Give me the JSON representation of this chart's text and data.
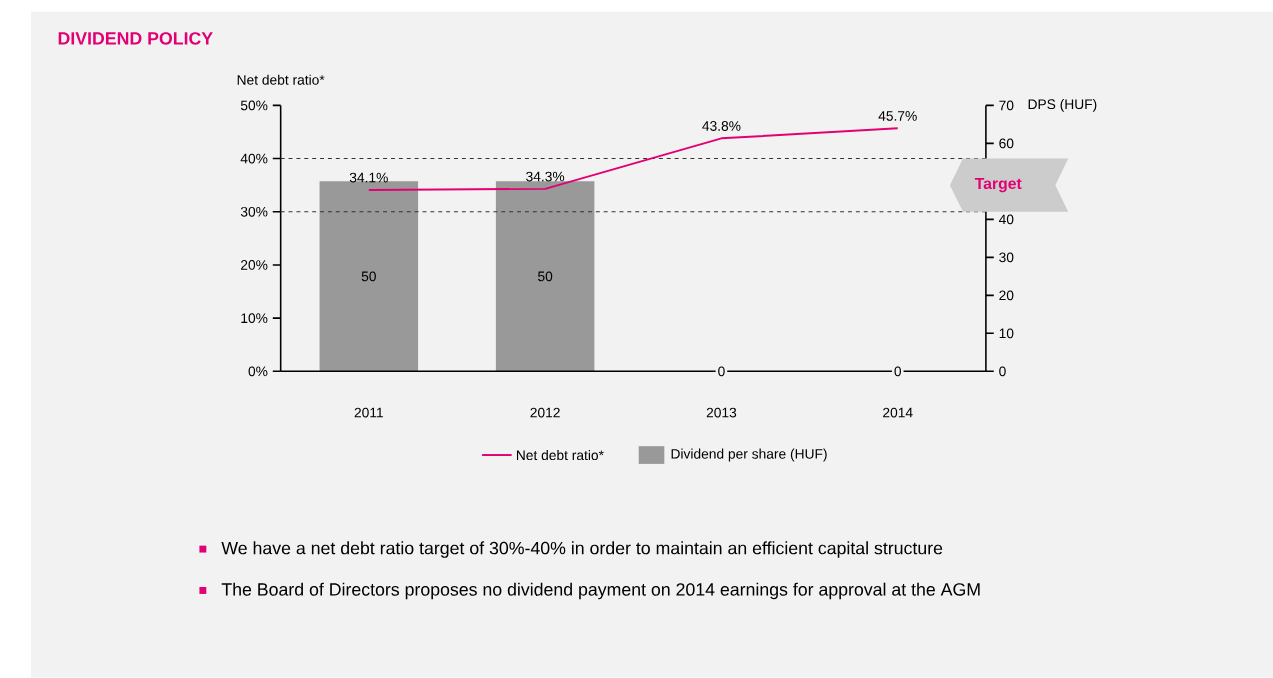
{
  "chart_data": {
    "type": "bar",
    "title": "DIVIDEND POLICY",
    "ylabel": "Net debt ratio*",
    "y2label": "DPS (HUF)",
    "categories": [
      "2011",
      "2012",
      "2013",
      "2014"
    ],
    "series": [
      {
        "name": "Net debt ratio*",
        "type": "line",
        "color": "#e20074",
        "values": [
          34.1,
          34.3,
          43.8,
          45.7
        ],
        "value_labels": [
          "34.1%",
          "34.3%",
          "43.8%",
          "45.7%"
        ]
      },
      {
        "name": "Dividend per share (HUF)",
        "axis": "y2",
        "color": "#999999",
        "values": [
          50,
          50,
          0,
          0
        ],
        "value_labels": [
          "50",
          "50",
          "0",
          "0"
        ]
      }
    ],
    "ylim": [
      0,
      50
    ],
    "yticks": [
      {
        "value": 0,
        "label": "0%"
      },
      {
        "value": 10,
        "label": "10%"
      },
      {
        "value": 20,
        "label": "20%"
      },
      {
        "value": 30,
        "label": "30%"
      },
      {
        "value": 40,
        "label": "40%"
      },
      {
        "value": 50,
        "label": "50%"
      }
    ],
    "y2lim": [
      0,
      70
    ],
    "y2ticks": [
      0,
      10,
      20,
      30,
      40,
      {
        "value": 50,
        "label": null
      },
      60,
      70
    ],
    "bands": [
      {
        "axis": "y",
        "from": 30,
        "to": 40,
        "label": "Target",
        "color": "#cccccc"
      }
    ],
    "ref_lines": [
      {
        "axis": "y",
        "value": 30,
        "line_style": "dashed",
        "color": "#333333"
      },
      {
        "axis": "y",
        "value": 40,
        "line_style": "dashed",
        "color": "#333333"
      }
    ],
    "annotations": [
      "We have a net debt ratio target of 30%-40% in order to maintain an efficient capital structure",
      "The Board of Directors proposes no dividend payment on 2014 earnings for approval at the AGM"
    ],
    "legend": "bottom"
  }
}
